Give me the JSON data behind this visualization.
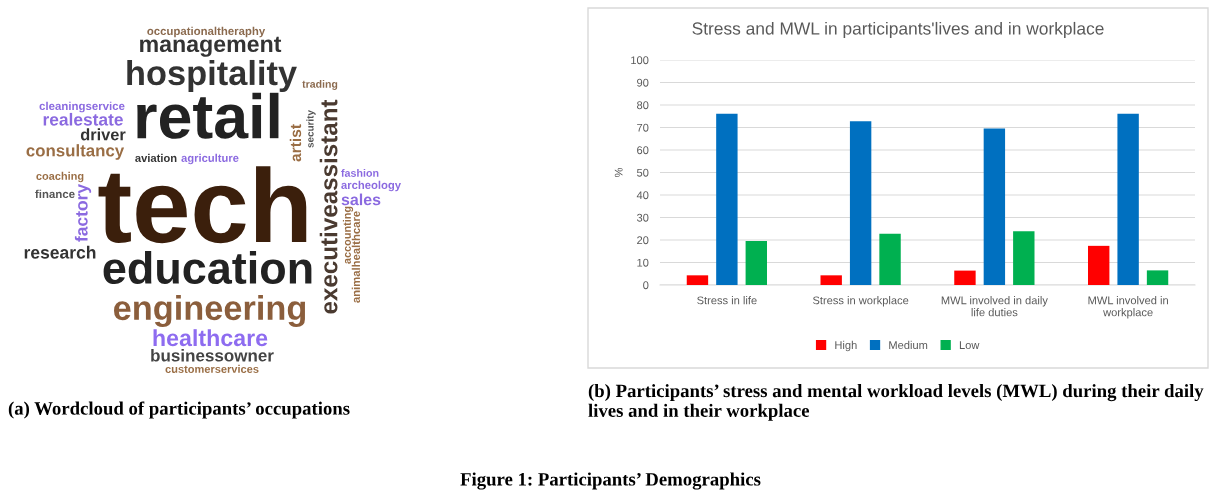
{
  "chart_data": [
    {
      "type": "other",
      "title": "(a) Wordcloud of participants’ occupations",
      "annotations": [
        "occupationaltheraphy",
        "management",
        "hospitality",
        "trading",
        "cleaningservice",
        "realestate",
        "driver",
        "consultancy",
        "retail",
        "artist",
        "security",
        "executiveassistant",
        "aviation",
        "agriculture",
        "coaching",
        "finance",
        "factory",
        "tech",
        "fashion",
        "archeology",
        "sales",
        "accounting",
        "animalhealthcare",
        "research",
        "education",
        "engineering",
        "healthcare",
        "businessowner",
        "customerservices"
      ],
      "colors": [
        "#8b6a4e",
        "#333333",
        "#333333",
        "#8b6a4e",
        "#8b6ae0",
        "#8b6ae0",
        "#333333",
        "#9a6e45",
        "#222222",
        "#9a6e45",
        "#555555",
        "#4a3a30",
        "#333333",
        "#8b6ae0",
        "#9a6e45",
        "#555555",
        "#8b6ae0",
        "#3b1f0c",
        "#8b6ae0",
        "#8b6ae0",
        "#8b6ae0",
        "#9a6e45",
        "#9a6e45",
        "#333333",
        "#222222",
        "#8b5e3c",
        "#8e6cf0",
        "#444444",
        "#9a6e45"
      ]
    },
    {
      "type": "bar",
      "title": "Stress and MWL in participants'lives and in workplace",
      "categories": [
        "Stress in life",
        "Stress in workplace",
        "MWL involved in daily life duties",
        "MWL involved in workplace"
      ],
      "series": [
        {
          "name": "High",
          "color": "#ff0000",
          "values": [
            4.3,
            4.3,
            6.4,
            17.4
          ]
        },
        {
          "name": "Medium",
          "color": "#0070c0",
          "values": [
            76.1,
            72.8,
            69.6,
            76.1
          ]
        },
        {
          "name": "Low",
          "color": "#00b050",
          "values": [
            19.6,
            22.8,
            23.9,
            6.5
          ]
        }
      ],
      "ylabel": "%",
      "ylim": [
        0,
        100
      ],
      "yticks": [
        0,
        10,
        20,
        30,
        40,
        50,
        60,
        70,
        80,
        90,
        100
      ],
      "grid": "y",
      "legend": "bottom",
      "annotations": [
        "(b) Participants’ stress and mental workload levels (MWL) during their daily lives and in their workplace",
        "Figure 1: Participants’ Demographics"
      ]
    }
  ]
}
